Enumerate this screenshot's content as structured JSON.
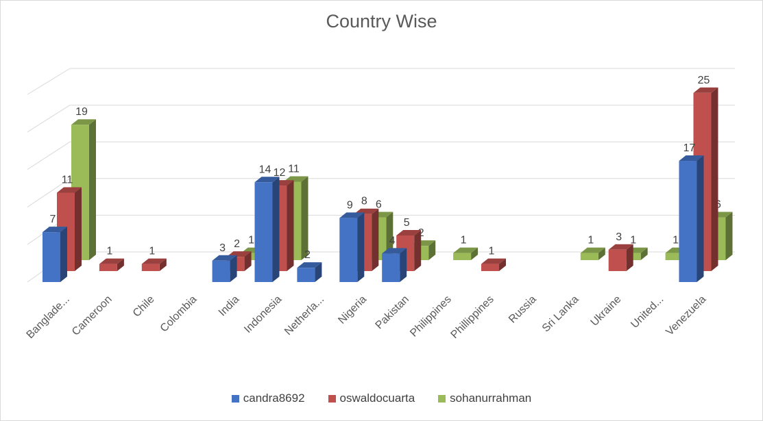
{
  "chart_data": {
    "type": "bar",
    "title": "Country Wise",
    "categories": [
      "Banglade...",
      "Cameroon",
      "Chile",
      "Colombia",
      "India",
      "Indonesia",
      "Netherla...",
      "Nigeria",
      "Pakistan",
      "Philippines",
      "Phillippines",
      "Russia",
      "Sri Lanka",
      "Ukraine",
      "United...",
      "Venezuela"
    ],
    "series": [
      {
        "name": "candra8692",
        "color": "#4472c4",
        "values": [
          7,
          null,
          null,
          null,
          3,
          14,
          2,
          9,
          4,
          null,
          null,
          null,
          null,
          null,
          null,
          17
        ]
      },
      {
        "name": "oswaldocuarta",
        "color": "#c0504d",
        "values": [
          11,
          1,
          1,
          null,
          2,
          12,
          null,
          8,
          5,
          null,
          1,
          null,
          null,
          3,
          null,
          25
        ]
      },
      {
        "name": "sohanurrahman",
        "color": "#9bbb59",
        "values": [
          19,
          null,
          null,
          null,
          1,
          11,
          null,
          6,
          2,
          1,
          null,
          null,
          1,
          1,
          1,
          6
        ]
      }
    ],
    "ylim": [
      0,
      25
    ],
    "grid": true,
    "legend_position": "bottom",
    "three_d": true
  }
}
